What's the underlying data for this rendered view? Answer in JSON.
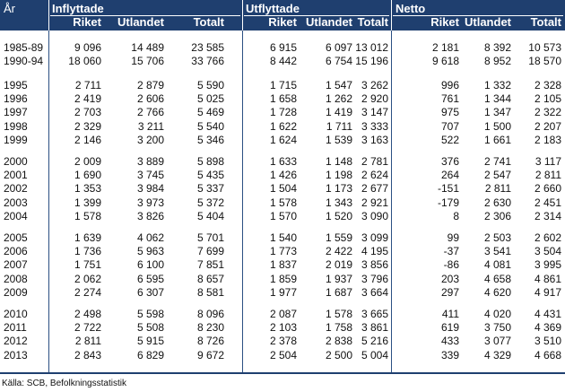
{
  "headers": {
    "year": "År",
    "groups": [
      "Inflyttade",
      "Utflyttade",
      "Netto"
    ],
    "subs": [
      "Riket",
      "Utlandet",
      "Totalt"
    ]
  },
  "groups": [
    {
      "rows": [
        [
          "1985-89",
          "9 096",
          "14 489",
          "23 585",
          "6 915",
          "6 097",
          "13 012",
          "2 181",
          "8 392",
          "10 573"
        ],
        [
          "1990-94",
          "18 060",
          "15 706",
          "33 766",
          "8 442",
          "6 754",
          "15 196",
          "9 618",
          "8 952",
          "18 570"
        ]
      ]
    },
    {
      "rows": [
        [
          "1995",
          "2 711",
          "2 879",
          "5 590",
          "1 715",
          "1 547",
          "3 262",
          "996",
          "1 332",
          "2 328"
        ],
        [
          "1996",
          "2 419",
          "2 606",
          "5 025",
          "1 658",
          "1 262",
          "2 920",
          "761",
          "1 344",
          "2 105"
        ],
        [
          "1997",
          "2 703",
          "2 766",
          "5 469",
          "1 728",
          "1 419",
          "3 147",
          "975",
          "1 347",
          "2 322"
        ],
        [
          "1998",
          "2 329",
          "3 211",
          "5 540",
          "1 622",
          "1 711",
          "3 333",
          "707",
          "1 500",
          "2 207"
        ],
        [
          "1999",
          "2 146",
          "3 200",
          "5 346",
          "1 624",
          "1 539",
          "3 163",
          "522",
          "1 661",
          "2 183"
        ]
      ]
    },
    {
      "rows": [
        [
          "2000",
          "2 009",
          "3 889",
          "5 898",
          "1 633",
          "1 148",
          "2 781",
          "376",
          "2 741",
          "3 117"
        ],
        [
          "2001",
          "1 690",
          "3 745",
          "5 435",
          "1 426",
          "1 198",
          "2 624",
          "264",
          "2 547",
          "2 811"
        ],
        [
          "2002",
          "1 353",
          "3 984",
          "5 337",
          "1 504",
          "1 173",
          "2 677",
          "-151",
          "2 811",
          "2 660"
        ],
        [
          "2003",
          "1 399",
          "3 973",
          "5 372",
          "1 578",
          "1 343",
          "2 921",
          "-179",
          "2 630",
          "2 451"
        ],
        [
          "2004",
          "1 578",
          "3 826",
          "5 404",
          "1 570",
          "1 520",
          "3 090",
          "8",
          "2 306",
          "2 314"
        ]
      ]
    },
    {
      "rows": [
        [
          "2005",
          "1 639",
          "4 062",
          "5 701",
          "1 540",
          "1 559",
          "3 099",
          "99",
          "2 503",
          "2 602"
        ],
        [
          "2006",
          "1 736",
          "5 963",
          "7 699",
          "1 773",
          "2 422",
          "4 195",
          "-37",
          "3 541",
          "3 504"
        ],
        [
          "2007",
          "1 751",
          "6 100",
          "7 851",
          "1 837",
          "2 019",
          "3 856",
          "-86",
          "4 081",
          "3 995"
        ],
        [
          "2008",
          "2 062",
          "6 595",
          "8 657",
          "1 859",
          "1 937",
          "3 796",
          "203",
          "4 658",
          "4 861"
        ],
        [
          "2009",
          "2 274",
          "6 307",
          "8 581",
          "1 977",
          "1 687",
          "3 664",
          "297",
          "4 620",
          "4 917"
        ]
      ]
    },
    {
      "rows": [
        [
          "2010",
          "2 498",
          "5 598",
          "8 096",
          "2 087",
          "1 578",
          "3 665",
          "411",
          "4 020",
          "4 431"
        ],
        [
          "2011",
          "2 722",
          "5 508",
          "8 230",
          "2 103",
          "1 758",
          "3 861",
          "619",
          "3 750",
          "4 369"
        ],
        [
          "2012",
          "2 811",
          "5 915",
          "8 726",
          "2 378",
          "2 838",
          "5 216",
          "433",
          "3 077",
          "3 510"
        ],
        [
          "2013",
          "2 843",
          "6 829",
          "9 672",
          "2 504",
          "2 500",
          "5 004",
          "339",
          "4 329",
          "4 668"
        ]
      ]
    }
  ],
  "source": "Källa:  SCB, Befolkningsstatistik",
  "colors": {
    "header_bg": "#1f3f6f",
    "header_text": "#ffffff",
    "body_text": "#111111"
  }
}
